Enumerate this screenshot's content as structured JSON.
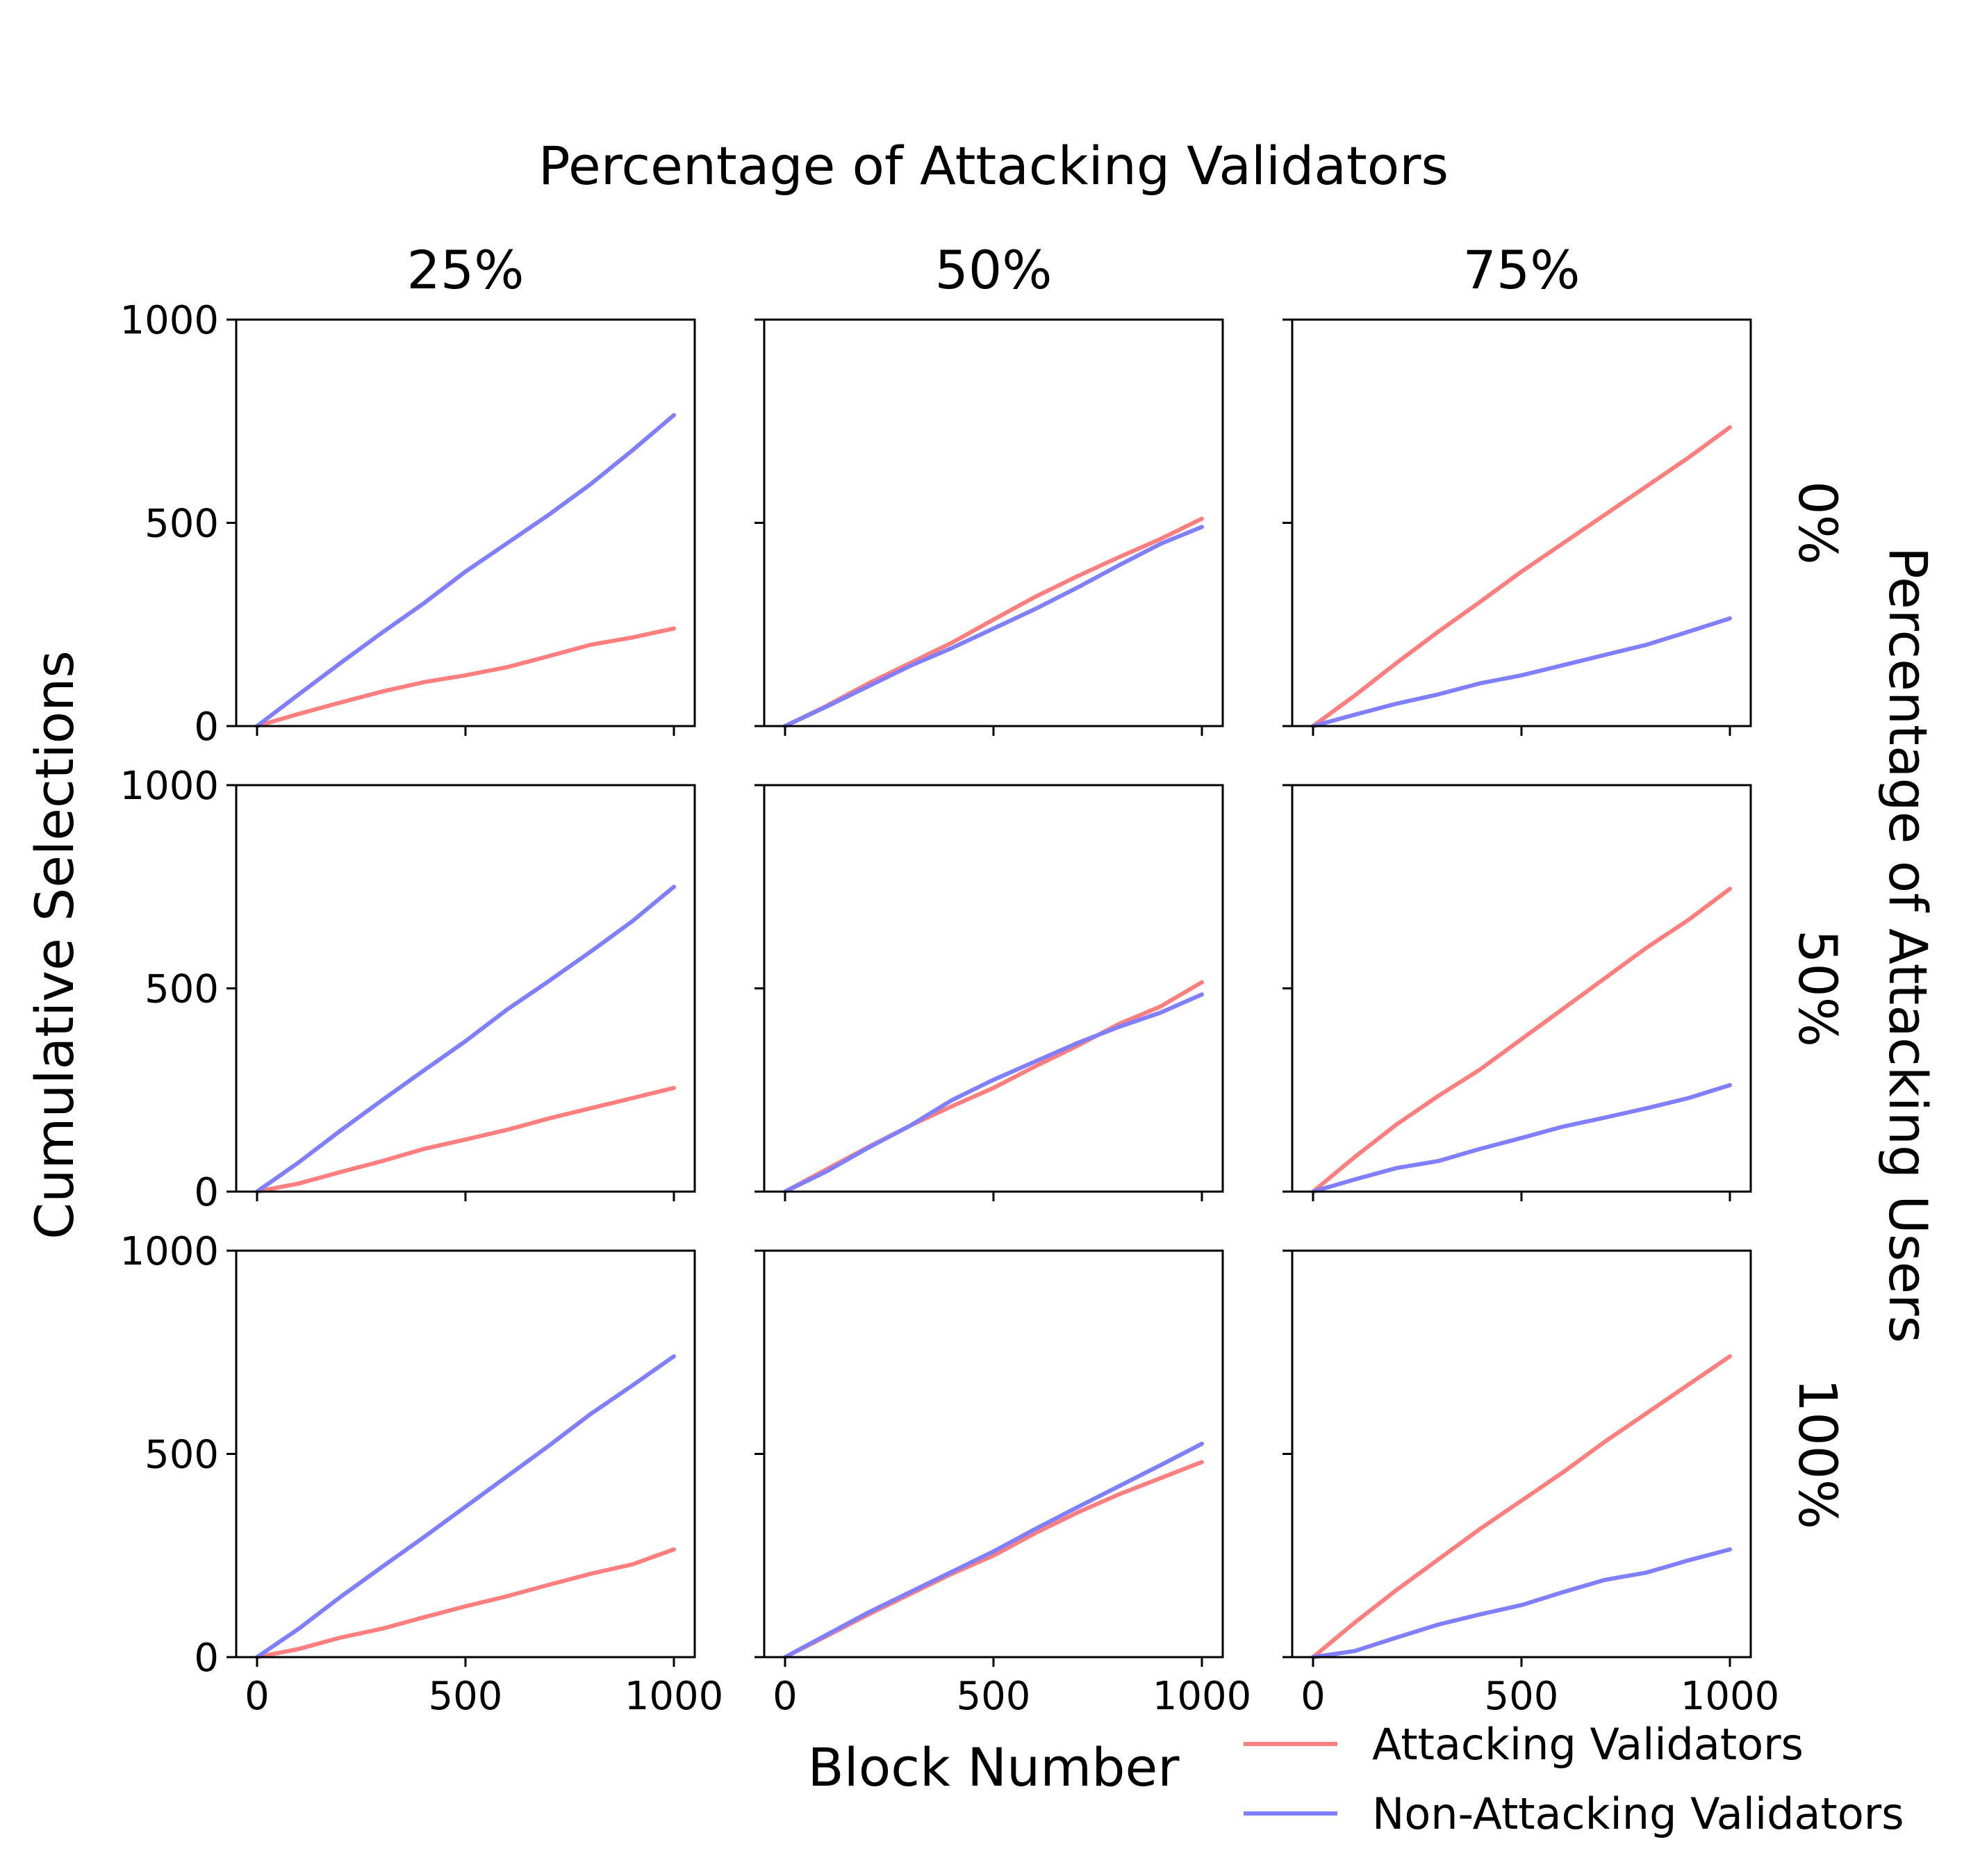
{
  "figure": {
    "top_title": "Percentage of Attacking Validators",
    "right_title": "Percentage of Attacking Users",
    "xlabel": "Block Number",
    "ylabel": "Cumulative Selections"
  },
  "legend": {
    "items": [
      {
        "label": "Attacking Validators",
        "color": "#ff7f7f"
      },
      {
        "label": "Non-Attacking Validators",
        "color": "#7f7fff"
      }
    ]
  },
  "chart_data": {
    "type": "line",
    "grid": false,
    "legend_placement": "bottom-right",
    "column_titles": [
      "25%",
      "50%",
      "75%"
    ],
    "row_titles": [
      "0%",
      "50%",
      "100%"
    ],
    "xlim": [
      -50,
      1050
    ],
    "ylim": [
      0,
      1000
    ],
    "xticks": [
      0,
      500,
      1000
    ],
    "yticks": [
      0,
      500,
      1000
    ],
    "x": [
      0,
      100,
      200,
      300,
      400,
      500,
      600,
      700,
      800,
      900,
      1000
    ],
    "panels": [
      {
        "row": "0%",
        "col": "25%",
        "series": [
          {
            "name": "Attacking Validators",
            "values": [
              0,
              30,
              58,
              85,
              108,
              125,
              145,
              172,
              200,
              218,
              240
            ]
          },
          {
            "name": "Non-Attacking Validators",
            "values": [
              0,
              78,
              155,
              230,
              302,
              380,
              450,
              520,
              595,
              678,
              765
            ]
          }
        ]
      },
      {
        "row": "0%",
        "col": "50%",
        "series": [
          {
            "name": "Attacking Validators",
            "values": [
              0,
              50,
              105,
              155,
              205,
              262,
              318,
              368,
              415,
              460,
              510
            ]
          },
          {
            "name": "Non-Attacking Validators",
            "values": [
              0,
              48,
              98,
              148,
              192,
              240,
              288,
              340,
              395,
              448,
              490
            ]
          }
        ]
      },
      {
        "row": "0%",
        "col": "75%",
        "series": [
          {
            "name": "Attacking Validators",
            "values": [
              0,
              75,
              155,
              232,
              305,
              380,
              450,
              520,
              590,
              660,
              735
            ]
          },
          {
            "name": "Non-Attacking Validators",
            "values": [
              0,
              28,
              55,
              78,
              105,
              125,
              150,
              175,
              200,
              232,
              265
            ]
          }
        ]
      },
      {
        "row": "50%",
        "col": "25%",
        "series": [
          {
            "name": "Attacking Validators",
            "values": [
              0,
              20,
              48,
              75,
              105,
              128,
              152,
              180,
              205,
              230,
              255
            ]
          },
          {
            "name": "Non-Attacking Validators",
            "values": [
              0,
              72,
              150,
              225,
              298,
              370,
              448,
              518,
              590,
              665,
              750
            ]
          }
        ]
      },
      {
        "row": "50%",
        "col": "50%",
        "series": [
          {
            "name": "Attacking Validators",
            "values": [
              0,
              55,
              110,
              162,
              210,
              255,
              308,
              358,
              412,
              455,
              515
            ]
          },
          {
            "name": "Non-Attacking Validators",
            "values": [
              0,
              50,
              108,
              162,
              225,
              275,
              320,
              365,
              405,
              440,
              485
            ]
          }
        ]
      },
      {
        "row": "50%",
        "col": "75%",
        "series": [
          {
            "name": "Attacking Validators",
            "values": [
              0,
              85,
              165,
              235,
              300,
              375,
              450,
              525,
              600,
              668,
              745
            ]
          },
          {
            "name": "Non-Attacking Validators",
            "values": [
              0,
              30,
              58,
              75,
              105,
              132,
              160,
              182,
              205,
              230,
              262
            ]
          }
        ]
      },
      {
        "row": "100%",
        "col": "25%",
        "series": [
          {
            "name": "Attacking Validators",
            "values": [
              0,
              20,
              48,
              70,
              98,
              125,
              150,
              178,
              205,
              228,
              265
            ]
          },
          {
            "name": "Non-Attacking Validators",
            "values": [
              0,
              70,
              148,
              222,
              295,
              370,
              445,
              520,
              598,
              668,
              740
            ]
          }
        ]
      },
      {
        "row": "100%",
        "col": "50%",
        "series": [
          {
            "name": "Attacking Validators",
            "values": [
              0,
              52,
              105,
              155,
              205,
              250,
              305,
              355,
              400,
              440,
              480
            ]
          },
          {
            "name": "Non-Attacking Validators",
            "values": [
              0,
              55,
              110,
              160,
              210,
              260,
              315,
              368,
              420,
              472,
              525
            ]
          }
        ]
      },
      {
        "row": "100%",
        "col": "75%",
        "series": [
          {
            "name": "Attacking Validators",
            "values": [
              0,
              85,
              165,
              240,
              315,
              385,
              455,
              530,
              600,
              670,
              740
            ]
          },
          {
            "name": "Non-Attacking Validators",
            "values": [
              0,
              15,
              48,
              80,
              105,
              128,
              160,
              190,
              208,
              238,
              265
            ]
          }
        ]
      }
    ]
  }
}
